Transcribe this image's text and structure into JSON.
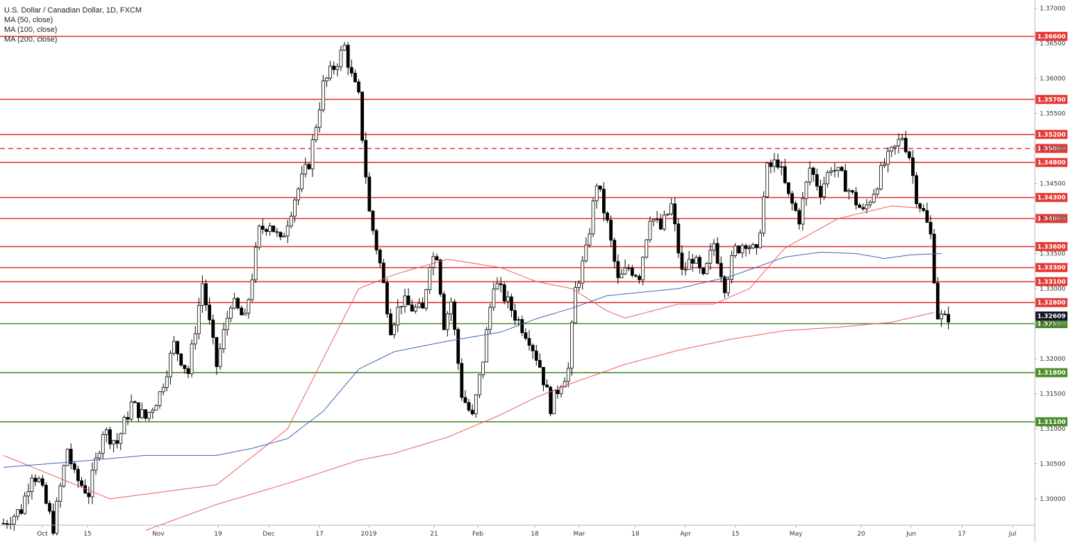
{
  "chart_data": {
    "type": "candlestick",
    "title": "U.S. Dollar / Canadian Dollar, 1D, FXCM",
    "indicators": [
      {
        "name": "MA (50, close)",
        "color": "#f05a5a"
      },
      {
        "name": "MA (100, close)",
        "color": "#3e63b6"
      },
      {
        "name": "MA (200, close)",
        "color": "#f05a5a"
      }
    ],
    "ylim": [
      1.2955,
      1.3715
    ],
    "y_ticks": [
      "1.37000",
      "1.36500",
      "1.36000",
      "1.35500",
      "1.35000",
      "1.34500",
      "1.34000",
      "1.33500",
      "1.33000",
      "1.32500",
      "1.32000",
      "1.31500",
      "1.31000",
      "1.30500",
      "1.30000"
    ],
    "x_ticks": [
      "Oct",
      "15",
      "Nov",
      "19",
      "Dec",
      "17",
      "2019",
      "21",
      "Feb",
      "18",
      "Mar",
      "18",
      "Apr",
      "15",
      "May",
      "20",
      "Jun",
      "17",
      "Jul"
    ],
    "last_price": {
      "label": "1.32609",
      "value": 1.32609,
      "color": "#131722"
    },
    "horizontal_levels": [
      {
        "label": "1.36600",
        "value": 1.366,
        "color": "#e53935",
        "style": "solid"
      },
      {
        "label": "1.35700",
        "value": 1.357,
        "color": "#e53935",
        "style": "solid"
      },
      {
        "label": "1.35200",
        "value": 1.352,
        "color": "#e53935",
        "style": "solid"
      },
      {
        "label": "1.35000",
        "value": 1.35,
        "color": "#e53935",
        "style": "dashed"
      },
      {
        "label": "1.34800",
        "value": 1.348,
        "color": "#e53935",
        "style": "solid"
      },
      {
        "label": "1.34300",
        "value": 1.343,
        "color": "#e53935",
        "style": "solid"
      },
      {
        "label": "1.34000",
        "value": 1.34,
        "color": "#e53935",
        "style": "solid"
      },
      {
        "label": "1.33600",
        "value": 1.336,
        "color": "#e53935",
        "style": "solid"
      },
      {
        "label": "1.33300",
        "value": 1.333,
        "color": "#e53935",
        "style": "solid"
      },
      {
        "label": "1.33100",
        "value": 1.331,
        "color": "#e53935",
        "style": "solid"
      },
      {
        "label": "1.32800",
        "value": 1.328,
        "color": "#e53935",
        "style": "solid"
      },
      {
        "label": "1.32500",
        "value": 1.325,
        "color": "#4a8c2a",
        "style": "solid"
      },
      {
        "label": "1.31800",
        "value": 1.318,
        "color": "#4a8c2a",
        "style": "solid"
      },
      {
        "label": "1.31100",
        "value": 1.311,
        "color": "#4a8c2a",
        "style": "solid"
      }
    ],
    "candle_colors": {
      "up": "#ffffff",
      "down": "#000000",
      "outline": "#000000"
    },
    "ohlc_anchors": [
      [
        0,
        1.2965
      ],
      [
        5,
        1.2985
      ],
      [
        8,
        1.3038
      ],
      [
        10,
        1.3025
      ],
      [
        14,
        1.296
      ],
      [
        18,
        1.3072
      ],
      [
        20,
        1.3032
      ],
      [
        24,
        1.3008
      ],
      [
        28,
        1.3098
      ],
      [
        32,
        1.308
      ],
      [
        36,
        1.3135
      ],
      [
        40,
        1.3115
      ],
      [
        44,
        1.315
      ],
      [
        48,
        1.322
      ],
      [
        52,
        1.318
      ],
      [
        56,
        1.3308
      ],
      [
        60,
        1.319
      ],
      [
        64,
        1.3282
      ],
      [
        68,
        1.3255
      ],
      [
        72,
        1.3382
      ],
      [
        75,
        1.3395
      ],
      [
        78,
        1.3365
      ],
      [
        82,
        1.343
      ],
      [
        86,
        1.348
      ],
      [
        90,
        1.359
      ],
      [
        94,
        1.3625
      ],
      [
        96,
        1.3645
      ],
      [
        98,
        1.3602
      ],
      [
        100,
        1.3572
      ],
      [
        103,
        1.3408
      ],
      [
        106,
        1.3335
      ],
      [
        109,
        1.3245
      ],
      [
        112,
        1.3282
      ],
      [
        115,
        1.3272
      ],
      [
        118,
        1.3268
      ],
      [
        120,
        1.334
      ],
      [
        122,
        1.335
      ],
      [
        124,
        1.325
      ],
      [
        126,
        1.3282
      ],
      [
        129,
        1.315
      ],
      [
        132,
        1.3115
      ],
      [
        135,
        1.32
      ],
      [
        138,
        1.331
      ],
      [
        141,
        1.3288
      ],
      [
        144,
        1.3262
      ],
      [
        148,
        1.323
      ],
      [
        151,
        1.319
      ],
      [
        154,
        1.3132
      ],
      [
        157,
        1.3168
      ],
      [
        159,
        1.3185
      ],
      [
        161,
        1.3298
      ],
      [
        164,
        1.3352
      ],
      [
        167,
        1.3452
      ],
      [
        170,
        1.3392
      ],
      [
        173,
        1.331
      ],
      [
        176,
        1.333
      ],
      [
        179,
        1.332
      ],
      [
        182,
        1.3405
      ],
      [
        185,
        1.3385
      ],
      [
        188,
        1.3418
      ],
      [
        191,
        1.3322
      ],
      [
        194,
        1.3345
      ],
      [
        197,
        1.3312
      ],
      [
        200,
        1.3365
      ],
      [
        203,
        1.3305
      ],
      [
        206,
        1.3355
      ],
      [
        209,
        1.3368
      ],
      [
        212,
        1.3348
      ],
      [
        215,
        1.347
      ],
      [
        218,
        1.3482
      ],
      [
        221,
        1.343
      ],
      [
        224,
        1.34
      ],
      [
        227,
        1.3472
      ],
      [
        230,
        1.344
      ],
      [
        233,
        1.3475
      ],
      [
        236,
        1.3458
      ],
      [
        239,
        1.3432
      ],
      [
        242,
        1.3408
      ],
      [
        245,
        1.344
      ],
      [
        248,
        1.3478
      ],
      [
        251,
        1.35
      ],
      [
        253,
        1.3518
      ],
      [
        255,
        1.349
      ],
      [
        257,
        1.3432
      ],
      [
        259,
        1.3408
      ],
      [
        261,
        1.3375
      ],
      [
        263,
        1.3262
      ],
      [
        265,
        1.3255
      ],
      [
        266,
        1.3261
      ]
    ],
    "ma_anchors": {
      "ma50": [
        [
          0,
          1.3062
        ],
        [
          30,
          1.3
        ],
        [
          60,
          1.302
        ],
        [
          80,
          1.31
        ],
        [
          100,
          1.33
        ],
        [
          110,
          1.332
        ],
        [
          125,
          1.3342
        ],
        [
          140,
          1.333
        ],
        [
          150,
          1.331
        ],
        [
          160,
          1.33
        ],
        [
          170,
          1.3268
        ],
        [
          175,
          1.3258
        ],
        [
          190,
          1.3278
        ],
        [
          200,
          1.3278
        ],
        [
          210,
          1.33
        ],
        [
          220,
          1.3358
        ],
        [
          235,
          1.34
        ],
        [
          250,
          1.3418
        ],
        [
          258,
          1.3415
        ]
      ],
      "ma100": [
        [
          0,
          1.3045
        ],
        [
          20,
          1.3053
        ],
        [
          40,
          1.3062
        ],
        [
          60,
          1.3062
        ],
        [
          70,
          1.3072
        ],
        [
          80,
          1.3086
        ],
        [
          90,
          1.3125
        ],
        [
          100,
          1.3185
        ],
        [
          110,
          1.321
        ],
        [
          125,
          1.3225
        ],
        [
          140,
          1.3238
        ],
        [
          150,
          1.3257
        ],
        [
          160,
          1.3272
        ],
        [
          170,
          1.329
        ],
        [
          190,
          1.33
        ],
        [
          205,
          1.3318
        ],
        [
          220,
          1.3345
        ],
        [
          230,
          1.3352
        ],
        [
          240,
          1.335
        ],
        [
          248,
          1.3343
        ],
        [
          255,
          1.3348
        ],
        [
          264,
          1.335
        ]
      ],
      "ma200": [
        [
          40,
          1.2955
        ],
        [
          60,
          1.2992
        ],
        [
          80,
          1.3022
        ],
        [
          100,
          1.3055
        ],
        [
          110,
          1.3065
        ],
        [
          125,
          1.3088
        ],
        [
          140,
          1.312
        ],
        [
          150,
          1.3145
        ],
        [
          160,
          1.3165
        ],
        [
          175,
          1.3192
        ],
        [
          190,
          1.3212
        ],
        [
          205,
          1.3228
        ],
        [
          220,
          1.324
        ],
        [
          235,
          1.3245
        ],
        [
          250,
          1.3252
        ],
        [
          262,
          1.3266
        ]
      ]
    }
  }
}
